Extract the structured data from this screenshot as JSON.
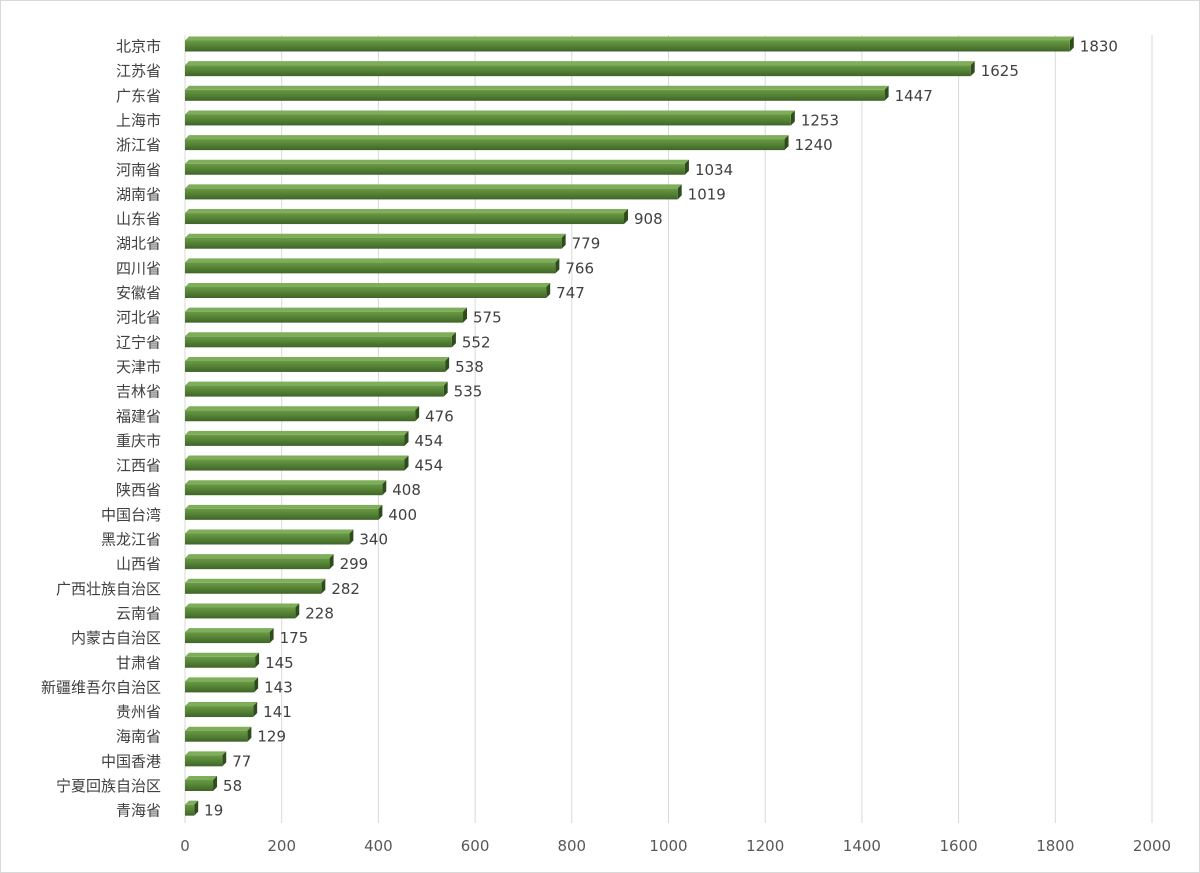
{
  "chart_data": {
    "type": "bar",
    "orientation": "horizontal",
    "categories": [
      "北京市",
      "江苏省",
      "广东省",
      "上海市",
      "浙江省",
      "河南省",
      "湖南省",
      "山东省",
      "湖北省",
      "四川省",
      "安徽省",
      "河北省",
      "辽宁省",
      "天津市",
      "吉林省",
      "福建省",
      "重庆市",
      "江西省",
      "陕西省",
      "中国台湾",
      "黑龙江省",
      "山西省",
      "广西壮族自治区",
      "云南省",
      "内蒙古自治区",
      "甘肃省",
      "新疆维吾尔自治区",
      "贵州省",
      "海南省",
      "中国香港",
      "宁夏回族自治区",
      "青海省"
    ],
    "values": [
      1830,
      1625,
      1447,
      1253,
      1240,
      1034,
      1019,
      908,
      779,
      766,
      747,
      575,
      552,
      538,
      535,
      476,
      454,
      454,
      408,
      400,
      340,
      299,
      282,
      228,
      175,
      145,
      143,
      141,
      129,
      77,
      58,
      19
    ],
    "xlim": [
      0,
      2000
    ],
    "xticks": [
      "0",
      "200",
      "400",
      "600",
      "800",
      "1000",
      "1200",
      "1400",
      "1600",
      "1800",
      "2000"
    ],
    "grid": true,
    "data_labels": true,
    "bar_color": "#548235",
    "title": "",
    "xlabel": "",
    "ylabel": ""
  }
}
